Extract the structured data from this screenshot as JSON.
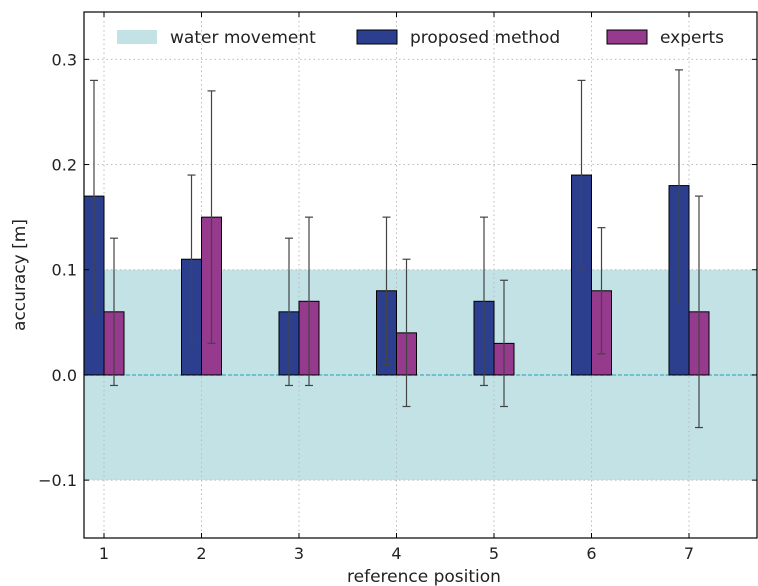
{
  "chart_data": {
    "type": "bar",
    "xlabel": "reference position",
    "ylabel": "accuracy [m]",
    "categories": [
      "1",
      "2",
      "3",
      "4",
      "5",
      "6",
      "7"
    ],
    "ylim": [
      -0.155,
      0.345
    ],
    "yticks": [
      -0.1,
      0.0,
      0.1,
      0.2,
      0.3
    ],
    "ytick_labels": [
      "−0.1",
      "0.0",
      "0.1",
      "0.2",
      "0.3"
    ],
    "grid": true,
    "legend_placement": "top",
    "band": {
      "name": "water movement",
      "range": [
        -0.1,
        0.1
      ],
      "color": "#c2e2e6"
    },
    "zero_line_color": "#4fb8c6",
    "series": [
      {
        "name": "proposed method",
        "color": "#2c3f8f",
        "values": [
          0.17,
          0.11,
          0.06,
          0.08,
          0.07,
          0.19,
          0.18
        ],
        "err_low": [
          0.06,
          0.03,
          -0.01,
          0.01,
          -0.01,
          0.1,
          0.07
        ],
        "err_high": [
          0.28,
          0.19,
          0.13,
          0.15,
          0.15,
          0.28,
          0.29
        ]
      },
      {
        "name": "experts",
        "color": "#953a8c",
        "values": [
          0.06,
          0.15,
          0.07,
          0.04,
          0.03,
          0.08,
          0.06
        ],
        "err_low": [
          -0.01,
          0.03,
          -0.01,
          -0.03,
          -0.03,
          0.02,
          -0.05
        ],
        "err_high": [
          0.13,
          0.27,
          0.15,
          0.11,
          0.09,
          0.14,
          0.17
        ]
      }
    ]
  }
}
